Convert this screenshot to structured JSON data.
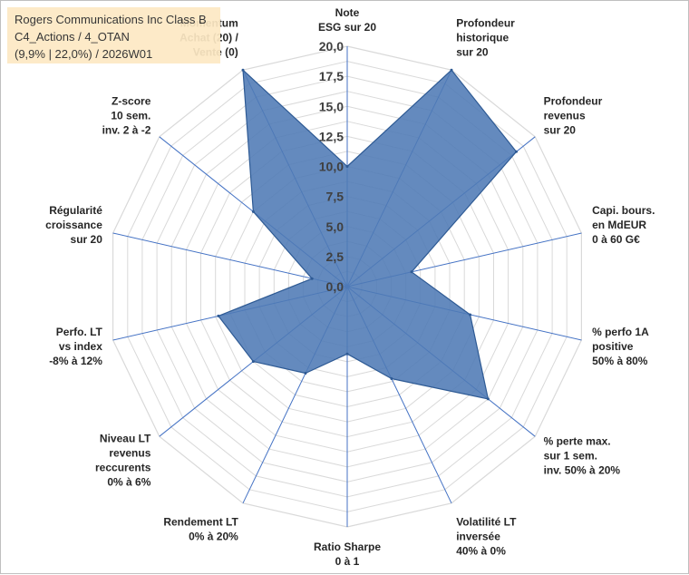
{
  "chart_data": {
    "type": "radar",
    "title_lines": [
      "Rogers Communications Inc Class B",
      "C4_Actions / 4_OTAN",
      "(9,9% | 22,0%) / 2026W01"
    ],
    "axes": [
      {
        "label": [
          "Note",
          "ESG sur 20"
        ],
        "value": 10
      },
      {
        "label": [
          "Profondeur",
          "historique",
          "sur 20"
        ],
        "value": 20
      },
      {
        "label": [
          "Profondeur",
          "revenus",
          "sur 20"
        ],
        "value": 18
      },
      {
        "label": [
          "Capi. bours.",
          "en MdEUR",
          "0 à 60 G€"
        ],
        "value": 5.5
      },
      {
        "label": [
          "% perfo 1A",
          "positive",
          "50% à 80%"
        ],
        "value": 10.5
      },
      {
        "label": [
          "% perte max.",
          "sur 1 sem.",
          "inv. 50% à 20%"
        ],
        "value": 15
      },
      {
        "label": [
          "Volatilité LT",
          "inversée",
          "40% à 0%"
        ],
        "value": 8.5
      },
      {
        "label": [
          "Ratio Sharpe",
          "0 à 1"
        ],
        "value": 5.6
      },
      {
        "label": [
          "Rendement LT",
          "0% à 20%"
        ],
        "value": 8
      },
      {
        "label": [
          "Niveau LT",
          "revenus",
          "reccurents",
          "0% à 6%"
        ],
        "value": 10
      },
      {
        "label": [
          "Perfo. LT",
          "vs index",
          "-8% à 12%"
        ],
        "value": 11
      },
      {
        "label": [
          "Régularité",
          "croissance",
          "sur 20"
        ],
        "value": 3
      },
      {
        "label": [
          "Z-score",
          "10 sem.",
          "inv. 2 à -2"
        ],
        "value": 10
      },
      {
        "label": [
          "Momentum",
          "Achat (20) /",
          "Vente (0)"
        ],
        "value": 20
      }
    ],
    "rlim": [
      0,
      20
    ],
    "ticks": [
      "0,0",
      "2,5",
      "5,0",
      "7,5",
      "10,0",
      "12,5",
      "15,0",
      "17,5",
      "20,0"
    ],
    "tick_values": [
      0,
      2.5,
      5,
      7.5,
      10,
      12.5,
      15,
      17.5,
      20
    ],
    "grid_rings": 16,
    "fill_color": "#4f7ab5",
    "line_color": "#2e5a94",
    "grid_color": "#d9d9d9",
    "axis_line_color": "#4472c4"
  }
}
